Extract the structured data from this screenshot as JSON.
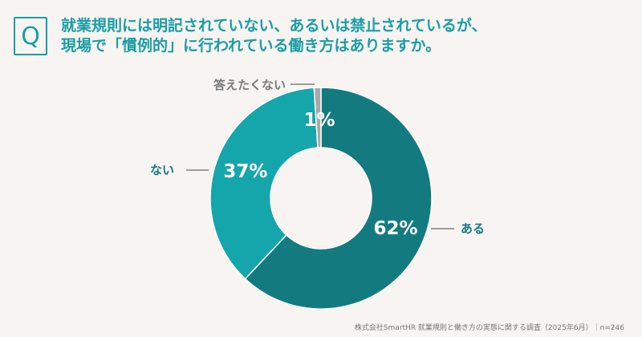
{
  "header": {
    "badge": "Q",
    "question_line1": "就業規則には明記されていない、あるいは禁止されているが、",
    "question_line2": "現場で「慣例的」に行われている働き方はありますか。"
  },
  "chart_data": {
    "type": "pie",
    "variant": "donut",
    "categories": [
      "ある",
      "ない",
      "答えたくない"
    ],
    "values": [
      62,
      37,
      1
    ],
    "value_labels": [
      "62%",
      "37%",
      "1%"
    ],
    "unit": "%",
    "colors": [
      "#137b80",
      "#15a6ab",
      "#a8a8a8"
    ],
    "legend": "none"
  },
  "colors": {
    "accent": "#1a9ea6",
    "background": "#f7f4f2",
    "label_dark": "#137b80",
    "label_gray": "#7a7a7a"
  },
  "footer": {
    "source": "株式会社SmartHR 就業規則と働き方の実態に関する調査（2025年6月）｜n=246"
  }
}
